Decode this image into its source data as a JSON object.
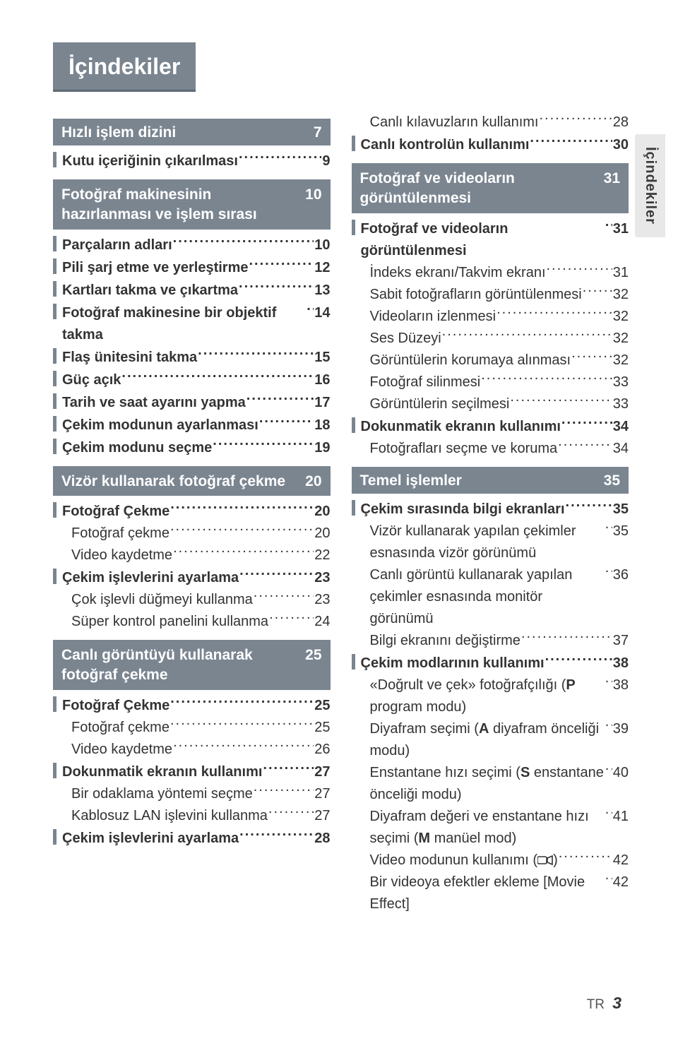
{
  "title": "İçindekiler",
  "sideTab": "İçindekiler",
  "footer": {
    "lang": "TR",
    "page": "3"
  },
  "colors": {
    "headerBg": "#7a8590",
    "headerBorder": "#5e6a75",
    "sideTabBg": "#e8e8e8",
    "text": "#333333"
  },
  "col1": [
    {
      "t": "head",
      "label": "Hızlı işlem dizini",
      "page": "7"
    },
    {
      "t": "item",
      "bar": true,
      "bold": true,
      "label": "Kutu içeriğinin çıkarılması",
      "page": "9"
    },
    {
      "t": "head",
      "multiline": true,
      "label": "Fotoğraf makinesinin hazırlanması ve işlem sırası",
      "page": "10"
    },
    {
      "t": "item",
      "bar": true,
      "bold": true,
      "label": "Parçaların adları",
      "page": "10"
    },
    {
      "t": "item",
      "bar": true,
      "bold": true,
      "label": "Pili şarj etme ve yerleştirme",
      "page": "12"
    },
    {
      "t": "item",
      "bar": true,
      "bold": true,
      "label": "Kartları takma ve çıkartma",
      "page": "13"
    },
    {
      "t": "item",
      "bar": true,
      "bold": true,
      "label": "Fotoğraf makinesine bir objektif takma",
      "page": "14"
    },
    {
      "t": "item",
      "bar": true,
      "bold": true,
      "label": "Flaş ünitesini takma",
      "page": "15"
    },
    {
      "t": "item",
      "bar": true,
      "bold": true,
      "label": "Güç açık",
      "page": "16"
    },
    {
      "t": "item",
      "bar": true,
      "bold": true,
      "label": "Tarih ve saat ayarını yapma",
      "page": "17"
    },
    {
      "t": "item",
      "bar": true,
      "bold": true,
      "label": "Çekim modunun ayarlanması",
      "page": "18"
    },
    {
      "t": "item",
      "bar": true,
      "bold": true,
      "label": "Çekim modunu seçme",
      "page": "19"
    },
    {
      "t": "head",
      "multiline": true,
      "label": "Vizör kullanarak fotoğraf çekme",
      "page": "20"
    },
    {
      "t": "item",
      "bar": true,
      "bold": true,
      "label": "Fotoğraf Çekme",
      "page": "20"
    },
    {
      "t": "sub",
      "label": "Fotoğraf çekme",
      "page": "20"
    },
    {
      "t": "sub",
      "label": "Video kaydetme",
      "page": "22"
    },
    {
      "t": "item",
      "bar": true,
      "bold": true,
      "label": "Çekim işlevlerini ayarlama",
      "page": "23"
    },
    {
      "t": "sub",
      "label": "Çok işlevli düğmeyi kullanma",
      "page": "23"
    },
    {
      "t": "sub",
      "label": "Süper kontrol panelini kullanma",
      "page": "24"
    },
    {
      "t": "head",
      "multiline": true,
      "label": "Canlı görüntüyü kullanarak fotoğraf çekme",
      "page": "25"
    },
    {
      "t": "item",
      "bar": true,
      "bold": true,
      "label": "Fotoğraf Çekme",
      "page": "25"
    },
    {
      "t": "sub",
      "label": "Fotoğraf çekme",
      "page": "25"
    },
    {
      "t": "sub",
      "label": "Video kaydetme",
      "page": "26"
    },
    {
      "t": "item",
      "bar": true,
      "bold": true,
      "label": "Dokunmatik ekranın kullanımı",
      "page": "27"
    },
    {
      "t": "sub",
      "label": "Bir odaklama yöntemi seçme",
      "page": "27"
    },
    {
      "t": "sub",
      "label": "Kablosuz LAN işlevini kullanma",
      "page": "27"
    },
    {
      "t": "item",
      "bar": true,
      "bold": true,
      "label": "Çekim işlevlerini ayarlama",
      "page": "28"
    }
  ],
  "col2": [
    {
      "t": "sub",
      "label": "Canlı kılavuzların kullanımı",
      "page": "28"
    },
    {
      "t": "item",
      "bar": true,
      "bold": true,
      "label": "Canlı kontrolün kullanımı",
      "page": "30"
    },
    {
      "t": "head",
      "multiline": true,
      "label": "Fotoğraf ve videoların görüntülenmesi",
      "page": "31"
    },
    {
      "t": "item",
      "bar": true,
      "bold": true,
      "label": "Fotoğraf ve videoların görüntülenmesi",
      "page": "31"
    },
    {
      "t": "sub",
      "label": "İndeks ekranı/Takvim ekranı",
      "page": "31"
    },
    {
      "t": "sub",
      "label": "Sabit fotoğrafların görüntülenmesi",
      "page": "32"
    },
    {
      "t": "sub",
      "label": "Videoların izlenmesi",
      "page": "32"
    },
    {
      "t": "sub",
      "label": "Ses Düzeyi",
      "page": "32"
    },
    {
      "t": "sub",
      "label": "Görüntülerin korumaya alınması",
      "page": "32",
      "tightDots": true
    },
    {
      "t": "sub",
      "label": "Fotoğraf silinmesi",
      "page": "33"
    },
    {
      "t": "sub",
      "label": "Görüntülerin seçilmesi",
      "page": "33"
    },
    {
      "t": "item",
      "bar": true,
      "bold": true,
      "label": "Dokunmatik ekranın kullanımı",
      "page": "34"
    },
    {
      "t": "sub",
      "label": "Fotoğrafları seçme ve koruma",
      "page": "34"
    },
    {
      "t": "head",
      "label": "Temel işlemler",
      "page": "35"
    },
    {
      "t": "item",
      "bar": true,
      "bold": true,
      "label": "Çekim sırasında bilgi ekranları",
      "page": "35"
    },
    {
      "t": "sub",
      "label": "Vizör kullanarak yapılan çekimler esnasında vizör görünümü",
      "page": "35"
    },
    {
      "t": "sub",
      "label": "Canlı görüntü kullanarak yapılan çekimler esnasında monitör görünümü",
      "page": "36"
    },
    {
      "t": "sub",
      "label": "Bilgi ekranını değiştirme",
      "page": "37"
    },
    {
      "t": "item",
      "bar": true,
      "bold": true,
      "label": "Çekim modlarının kullanımı",
      "page": "38"
    },
    {
      "t": "subhtml",
      "html": "«Doğrult ve çek» fotoğrafçılığı (<b>P</b> program modu)",
      "page": "38"
    },
    {
      "t": "subhtml",
      "html": "Diyafram seçimi (<b>A</b> diyafram önceliği modu)",
      "page": "39"
    },
    {
      "t": "subhtml",
      "html": "Enstantane hızı seçimi (<b>S</b> enstantane önceliği modu)",
      "page": "40"
    },
    {
      "t": "subhtml",
      "html": "Diyafram değeri ve enstantane hızı seçimi (<b>M</b> manüel mod)",
      "page": "41"
    },
    {
      "t": "subhtml",
      "html": "Video modunun kullanımı (<svg class='inline-icon' width='22' height='16'><rect x='0' y='3' width='13' height='10' rx='2' fill='none' stroke='#333' stroke-width='1.6'/><path d='M14 5 L21 2 L21 14 L14 11 Z' fill='none' stroke='#333' stroke-width='1.6'/></svg>)",
      "page": "42"
    },
    {
      "t": "sub",
      "label": "Bir videoya efektler ekleme [Movie Effect]",
      "page": "42"
    }
  ]
}
